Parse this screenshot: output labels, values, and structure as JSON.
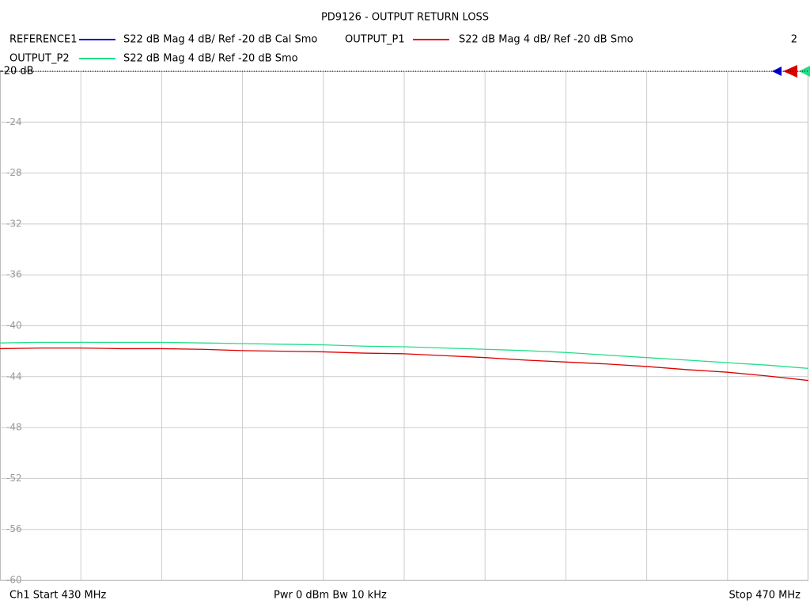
{
  "chart_data": {
    "type": "line",
    "title": "PD9126 - OUTPUT RETURN LOSS",
    "channel_number": "2",
    "footer": {
      "left": "Ch1  Start  430 MHz",
      "center": "Pwr  0 dBm  Bw  10 kHz",
      "right": "Stop  470 MHz"
    },
    "x": [
      430,
      432,
      434,
      436,
      438,
      440,
      442,
      444,
      446,
      448,
      450,
      452,
      454,
      456,
      458,
      460,
      462,
      464,
      466,
      468,
      470
    ],
    "xlim": [
      430,
      470
    ],
    "xgrid": [
      434,
      438,
      442,
      446,
      450,
      454,
      458,
      462,
      466
    ],
    "ylim": [
      -60,
      -20
    ],
    "yticks": [
      {
        "value": -20,
        "label": "-20 dB"
      },
      -24,
      -28,
      -32,
      -36,
      -40,
      -44,
      -48,
      -52,
      -56,
      -60
    ],
    "grid": true,
    "series": [
      {
        "name": "REFERENCE1",
        "label": "S22  dB Mag  4 dB/ Ref -20 dB  Cal Smo",
        "color": "#0000cc",
        "values": [
          null,
          null,
          null,
          null,
          null,
          null,
          null,
          null,
          null,
          null,
          null,
          null,
          null,
          null,
          null,
          null,
          null,
          null,
          null,
          null,
          null
        ]
      },
      {
        "name": "OUTPUT_P1",
        "label": "S22  dB Mag  4 dB/ Ref -20 dB  Smo",
        "color": "#dd0000",
        "values": [
          -41.8,
          -41.75,
          -41.75,
          -41.8,
          -41.8,
          -41.85,
          -41.95,
          -42.0,
          -42.05,
          -42.15,
          -42.2,
          -42.35,
          -42.5,
          -42.7,
          -42.85,
          -43.0,
          -43.2,
          -43.45,
          -43.65,
          -43.95,
          -44.3
        ]
      },
      {
        "name": "OUTPUT_P2",
        "label": "S22  dB Mag  4 dB/ Ref -20 dB  Smo",
        "color": "#22dd88",
        "values": [
          -41.35,
          -41.3,
          -41.3,
          -41.3,
          -41.3,
          -41.35,
          -41.4,
          -41.45,
          -41.5,
          -41.6,
          -41.65,
          -41.75,
          -41.85,
          -41.95,
          -42.1,
          -42.3,
          -42.5,
          -42.7,
          -42.9,
          -43.1,
          -43.35
        ]
      }
    ]
  }
}
